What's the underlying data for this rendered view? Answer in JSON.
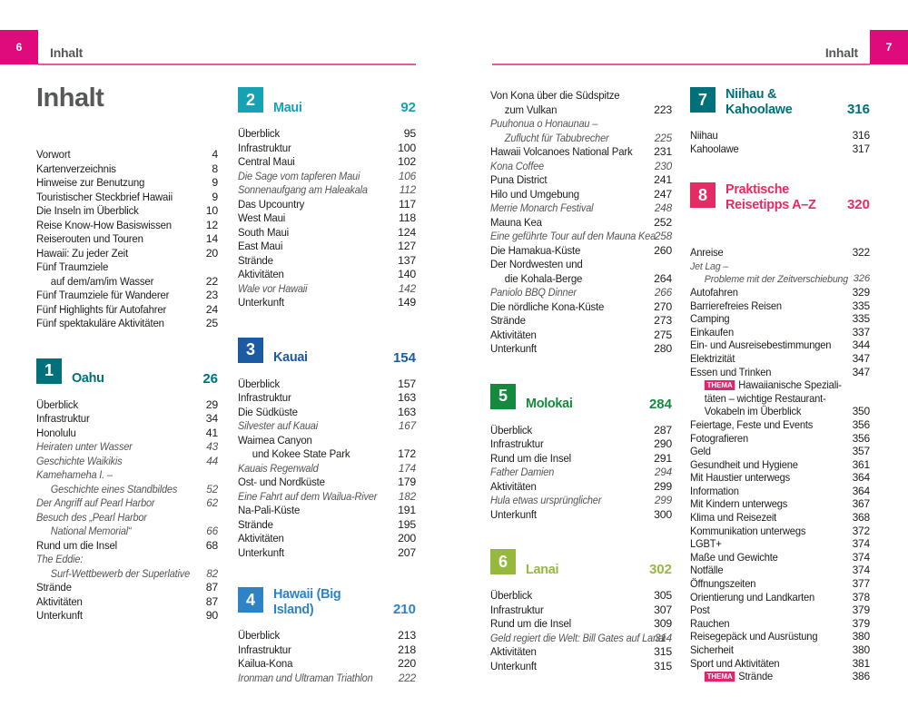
{
  "header_left": {
    "page": "6",
    "label": "Inhalt"
  },
  "header_right": {
    "page": "7",
    "label": "Inhalt"
  },
  "title": "Inhalt",
  "colors": {
    "magenta_tab": "#df0b7c",
    "rule_pink": "#e75a9e",
    "badge_pink": "#e2246c",
    "teal_dark": "#00707a",
    "teal": "#16a2b3",
    "blue_dark": "#1d5aa4",
    "blue": "#2e83c6",
    "green": "#158a3e",
    "lime": "#95b93e",
    "crimson": "#e22c63",
    "body_text": "#1d1d1b",
    "italic_text": "#54555a",
    "title_gray": "#57585a"
  },
  "columns": [
    {
      "blocks": [
        {
          "type": "pagetitle"
        },
        {
          "type": "entries",
          "items": [
            {
              "t": "Vorwort",
              "p": "4"
            },
            {
              "t": "Kartenverzeichnis",
              "p": "8"
            },
            {
              "t": "Hinweise zur Benutzung",
              "p": "9"
            },
            {
              "t": "Touristischer Steckbrief Hawaii",
              "p": "9"
            },
            {
              "t": "Die Inseln im Überblick",
              "p": "10"
            },
            {
              "t": "Reise Know-How Basiswissen",
              "p": "12"
            },
            {
              "t": "Reiserouten und Touren",
              "p": "14"
            },
            {
              "t": "Hawaii: Zu jeder Zeit",
              "p": "20"
            },
            {
              "t": "Fünf Traumziele",
              "p": ""
            },
            {
              "t": "auf dem/am/im Wasser",
              "p": "22",
              "ind": true
            },
            {
              "t": "Fünf Traumziele für Wanderer",
              "p": "23"
            },
            {
              "t": "Fünf Highlights für Autofahrer",
              "p": "24"
            },
            {
              "t": "Fünf spektakuläre Aktivitäten",
              "p": "25"
            }
          ]
        },
        {
          "type": "section",
          "num": "1",
          "title": "Oahu",
          "page": "26",
          "color": "#00707a"
        },
        {
          "type": "entries",
          "items": [
            {
              "t": "Überblick",
              "p": "29"
            },
            {
              "t": "Infrastruktur",
              "p": "34"
            },
            {
              "t": "Honolulu",
              "p": "41"
            },
            {
              "t": "Heiraten unter Wasser",
              "p": "43",
              "it": true
            },
            {
              "t": "Geschichte Waikikis",
              "p": "44",
              "it": true
            },
            {
              "t": "Kamehameha I. –",
              "p": "",
              "it": true
            },
            {
              "t": "Geschichte eines Standbildes",
              "p": "52",
              "it": true,
              "ind": true
            },
            {
              "t": "Der Angriff auf Pearl Harbor",
              "p": "62",
              "it": true
            },
            {
              "t": "Besuch des „Pearl Harbor",
              "p": "",
              "it": true
            },
            {
              "t": "National Memorial“",
              "p": "66",
              "it": true,
              "ind": true
            },
            {
              "t": "Rund um die Insel",
              "p": "68"
            },
            {
              "t": "The Eddie:",
              "p": "",
              "it": true
            },
            {
              "t": "Surf-Wettbewerb der Superlative",
              "p": "82",
              "it": true,
              "ind": true
            },
            {
              "t": "Strände",
              "p": "87"
            },
            {
              "t": "Aktivitäten",
              "p": "87"
            },
            {
              "t": "Unterkunft",
              "p": "90"
            }
          ]
        }
      ]
    },
    {
      "blocks": [
        {
          "type": "section",
          "num": "2",
          "title": "Maui",
          "page": "92",
          "color": "#16a2b3"
        },
        {
          "type": "entries",
          "items": [
            {
              "t": "Überblick",
              "p": "95"
            },
            {
              "t": "Infrastruktur",
              "p": "100"
            },
            {
              "t": "Central Maui",
              "p": "102"
            },
            {
              "t": "Die Sage vom tapferen Maui",
              "p": "106",
              "it": true
            },
            {
              "t": "Sonnenaufgang am Haleakala",
              "p": "112",
              "it": true
            },
            {
              "t": "Das Upcountry",
              "p": "117"
            },
            {
              "t": "West Maui",
              "p": "118"
            },
            {
              "t": "South Maui",
              "p": "124"
            },
            {
              "t": "East Maui",
              "p": "127"
            },
            {
              "t": "Strände",
              "p": "137"
            },
            {
              "t": "Aktivitäten",
              "p": "140"
            },
            {
              "t": "Wale vor Hawaii",
              "p": "142",
              "it": true
            },
            {
              "t": "Unterkunft",
              "p": "149"
            }
          ]
        },
        {
          "type": "section",
          "num": "3",
          "title": "Kauai",
          "page": "154",
          "color": "#1d5aa4"
        },
        {
          "type": "entries",
          "items": [
            {
              "t": "Überblick",
              "p": "157"
            },
            {
              "t": "Infrastruktur",
              "p": "163"
            },
            {
              "t": "Die Südküste",
              "p": "163"
            },
            {
              "t": "Silvester auf Kauai",
              "p": "167",
              "it": true
            },
            {
              "t": "Waimea Canyon",
              "p": ""
            },
            {
              "t": "und Kokee State Park",
              "p": "172",
              "ind": true
            },
            {
              "t": "Kauais Regenwald",
              "p": "174",
              "it": true
            },
            {
              "t": "Ost- und Nordküste",
              "p": "179"
            },
            {
              "t": "Eine Fahrt auf dem Wailua-River",
              "p": "182",
              "it": true
            },
            {
              "t": "Na-Pali-Küste",
              "p": "191"
            },
            {
              "t": "Strände",
              "p": "195"
            },
            {
              "t": "Aktivitäten",
              "p": "200"
            },
            {
              "t": "Unterkunft",
              "p": "207"
            }
          ]
        },
        {
          "type": "section",
          "num": "4",
          "title": "Hawaii (Big Island)",
          "page": "210",
          "color": "#2e83c6"
        },
        {
          "type": "entries",
          "items": [
            {
              "t": "Überblick",
              "p": "213"
            },
            {
              "t": "Infrastruktur",
              "p": "218"
            },
            {
              "t": "Kailua-Kona",
              "p": "220"
            },
            {
              "t": "Ironman und Ultraman Triathlon",
              "p": "222",
              "it": true
            }
          ]
        }
      ]
    },
    {
      "blocks": [
        {
          "type": "entries",
          "items": [
            {
              "t": "Von Kona über die Südspitze",
              "p": ""
            },
            {
              "t": "zum Vulkan",
              "p": "223",
              "ind": true
            },
            {
              "t": "Puuhonua o Honaunau –",
              "p": "",
              "it": true
            },
            {
              "t": "Zuflucht für Tabubrecher",
              "p": "225",
              "it": true,
              "ind": true
            },
            {
              "t": "Hawaii Volcanoes National Park",
              "p": "231"
            },
            {
              "t": "Kona Coffee",
              "p": "230",
              "it": true
            },
            {
              "t": "Puna District",
              "p": "241"
            },
            {
              "t": "Hilo und Umgebung",
              "p": "247"
            },
            {
              "t": "Merrie Monarch Festival",
              "p": "248",
              "it": true
            },
            {
              "t": "Mauna Kea",
              "p": "252"
            },
            {
              "t": "Eine geführte Tour auf den Mauna Kea",
              "p": "258",
              "it": true
            },
            {
              "t": "Die Hamakua-Küste",
              "p": "260"
            },
            {
              "t": "Der Nordwesten und",
              "p": ""
            },
            {
              "t": "die Kohala-Berge",
              "p": "264",
              "ind": true
            },
            {
              "t": "Paniolo BBQ Dinner",
              "p": "266",
              "it": true
            },
            {
              "t": "Die nördliche Kona-Küste",
              "p": "270"
            },
            {
              "t": "Strände",
              "p": "273"
            },
            {
              "t": "Aktivitäten",
              "p": "275"
            },
            {
              "t": "Unterkunft",
              "p": "280"
            }
          ]
        },
        {
          "type": "section",
          "num": "5",
          "title": "Molokai",
          "page": "284",
          "color": "#158a3e"
        },
        {
          "type": "entries",
          "items": [
            {
              "t": "Überblick",
              "p": "287"
            },
            {
              "t": "Infrastruktur",
              "p": "290"
            },
            {
              "t": "Rund um die Insel",
              "p": "291"
            },
            {
              "t": "Father Damien",
              "p": "294",
              "it": true
            },
            {
              "t": "Aktivitäten",
              "p": "299"
            },
            {
              "t": "Hula etwas ursprünglicher",
              "p": "299",
              "it": true
            },
            {
              "t": "Unterkunft",
              "p": "300"
            }
          ]
        },
        {
          "type": "section",
          "num": "6",
          "title": "Lanai",
          "page": "302",
          "color": "#95b93e"
        },
        {
          "type": "entries",
          "items": [
            {
              "t": "Überblick",
              "p": "305"
            },
            {
              "t": "Infrastruktur",
              "p": "307"
            },
            {
              "t": "Rund um die Insel",
              "p": "309"
            },
            {
              "t": "Geld regiert die Welt: Bill Gates auf Lanai",
              "p": "314",
              "it": true
            },
            {
              "t": "Aktivitäten",
              "p": "315"
            },
            {
              "t": "Unterkunft",
              "p": "315"
            }
          ]
        }
      ]
    },
    {
      "blocks": [
        {
          "type": "section",
          "num": "7",
          "title": "Niihau & Kahoolawe",
          "page": "316",
          "color": "#00707a"
        },
        {
          "type": "entries",
          "items": [
            {
              "t": "Niihau",
              "p": "316"
            },
            {
              "t": "Kahoolawe",
              "p": "317"
            }
          ]
        },
        {
          "type": "section",
          "num": "8",
          "title": "Praktische Reisetipps A–Z",
          "page": "320",
          "color": "#e22c63"
        },
        {
          "type": "entries",
          "cls": "mt-lg",
          "items": [
            {
              "t": "Anreise",
              "p": "322"
            },
            {
              "t": "Jet Lag –",
              "p": "",
              "it": true
            },
            {
              "t": "Probleme mit der Zeitverschiebung",
              "p": "326",
              "it": true,
              "ind": true
            },
            {
              "t": "Autofahren",
              "p": "329"
            },
            {
              "t": "Barrierefreies Reisen",
              "p": "335"
            },
            {
              "t": "Camping",
              "p": "335"
            },
            {
              "t": "Einkaufen",
              "p": "337"
            },
            {
              "t": "Ein- und Ausreisebestimmungen",
              "p": "344"
            },
            {
              "t": "Elektrizität",
              "p": "347"
            },
            {
              "t": "Essen und Trinken",
              "p": "347"
            },
            {
              "t": "Hawaiianische Speziali-",
              "p": "",
              "ind": true,
              "badge": "THEMA"
            },
            {
              "t": "täten – wichtige Restaurant-",
              "p": "",
              "ind": true
            },
            {
              "t": "Vokabeln im Überblick",
              "p": "350",
              "ind": true
            },
            {
              "t": "Feiertage, Feste und Events",
              "p": "356"
            },
            {
              "t": "Fotografieren",
              "p": "356"
            },
            {
              "t": "Geld",
              "p": "357"
            },
            {
              "t": "Gesundheit und Hygiene",
              "p": "361"
            },
            {
              "t": "Mit Haustier unterwegs",
              "p": "364"
            },
            {
              "t": "Information",
              "p": "364"
            },
            {
              "t": "Mit Kindern unterwegs",
              "p": "367"
            },
            {
              "t": "Klima und Reisezeit",
              "p": "368"
            },
            {
              "t": "Kommunikation unterwegs",
              "p": "372"
            },
            {
              "t": "LGBT+",
              "p": "374"
            },
            {
              "t": "Maße und Gewichte",
              "p": "374"
            },
            {
              "t": "Notfälle",
              "p": "374"
            },
            {
              "t": "Öffnungszeiten",
              "p": "377"
            },
            {
              "t": "Orientierung und Landkarten",
              "p": "378"
            },
            {
              "t": "Post",
              "p": "379"
            },
            {
              "t": "Rauchen",
              "p": "379"
            },
            {
              "t": "Reisegepäck und Ausrüstung",
              "p": "380"
            },
            {
              "t": "Sicherheit",
              "p": "380"
            },
            {
              "t": "Sport und Aktivitäten",
              "p": "381"
            },
            {
              "t": "Strände",
              "p": "386",
              "ind": true,
              "badge": "THEMA"
            }
          ]
        }
      ]
    }
  ]
}
